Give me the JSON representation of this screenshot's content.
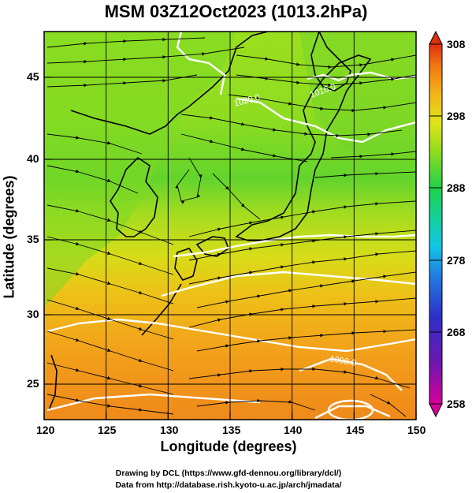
{
  "title": "MSM 03Z12Oct2023 (1013.2hPa)",
  "chart_data": {
    "type": "map",
    "title": "MSM 03Z12Oct2023 (1013.2hPa)",
    "xlabel": "Longitude (degrees)",
    "ylabel": "Latitude  (degrees)",
    "xlim": [
      120,
      150
    ],
    "ylim": [
      22.5,
      47.6
    ],
    "x_ticks": [
      "120",
      "125",
      "130",
      "135",
      "140",
      "145",
      "150"
    ],
    "y_ticks": [
      "25",
      "30",
      "35",
      "40",
      "45"
    ],
    "colorbar": {
      "min": 258,
      "max": 308,
      "ticks": [
        "308",
        "298",
        "288",
        "278",
        "268",
        "258"
      ],
      "colors": [
        "#d6009a",
        "#2f1fb8",
        "#1f73e0",
        "#12c6e8",
        "#18d08a",
        "#1fd24a",
        "#7cda1f",
        "#d4e81a",
        "#f3b81a",
        "#f07a12",
        "#e03a10"
      ]
    },
    "contour_labels": [
      "1020.0",
      "1016.0",
      "1008.0"
    ],
    "grid": true
  },
  "credits": {
    "line1": "Drawing by DCL (https://www.gfd-dennou.org/library/dcl/)",
    "line2": "Data from http://database.rish.kyoto-u.ac.jp/arch/jmadata/"
  }
}
